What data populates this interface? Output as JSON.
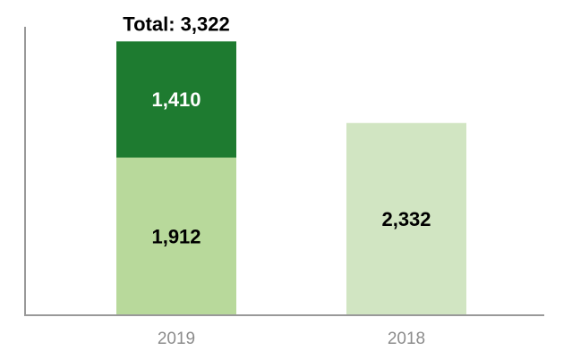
{
  "chart_data": {
    "type": "bar",
    "stacked": true,
    "categories": [
      "2019",
      "2018"
    ],
    "series": [
      {
        "values": [
          1912,
          2332
        ],
        "colors": [
          "#b8d99b",
          "#d1e5c2"
        ],
        "label_color": "#000000"
      },
      {
        "values": [
          1410,
          null
        ],
        "colors": [
          "#1e7b30",
          null
        ],
        "label_color": "#ffffff"
      }
    ],
    "value_labels": [
      [
        "1,912",
        "2,332"
      ],
      [
        "1,410",
        ""
      ]
    ],
    "totals": [
      "Total: 3,322",
      ""
    ],
    "ylim": [
      0,
      3575
    ],
    "axes": {
      "left": true,
      "bottom": true,
      "grid": false
    },
    "title": "",
    "xlabel": "",
    "ylabel": ""
  }
}
